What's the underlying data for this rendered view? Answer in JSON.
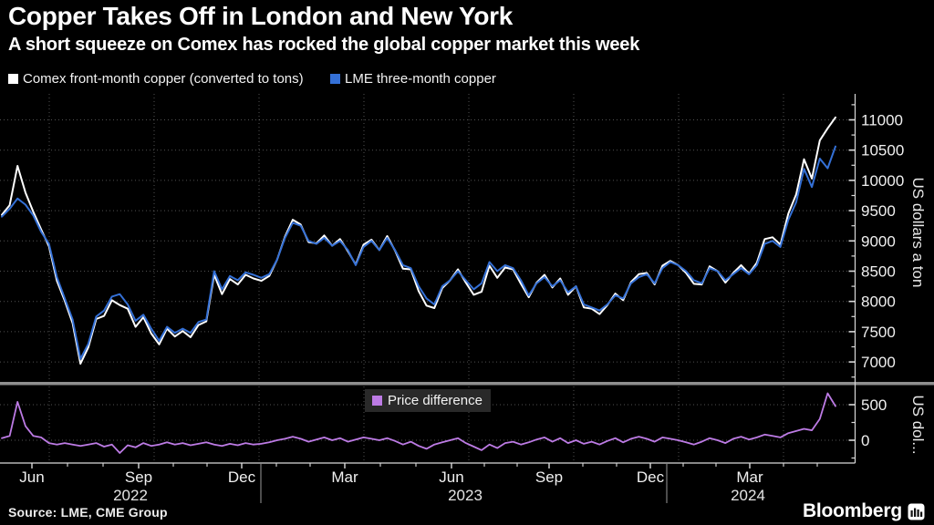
{
  "header": {
    "title": "Copper Takes Off in London and New York",
    "subtitle": "A short squeeze on Comex has rocked the global copper market this week"
  },
  "legend": {
    "series": [
      {
        "label": "Comex front-month copper (converted to tons)",
        "color": "#ffffff"
      },
      {
        "label": "LME three-month copper",
        "color": "#3470d6"
      }
    ]
  },
  "diff_legend": {
    "label": "Price difference",
    "color": "#bd7be5"
  },
  "footer": {
    "source": "Source: LME, CME Group",
    "brand": "Bloomberg"
  },
  "colors": {
    "background": "#000000",
    "comex_line": "#ffffff",
    "lme_line": "#3470d6",
    "diff_line": "#bd7be5",
    "grid": "rgba(255,255,255,0.32)",
    "axis": "#d9d9d9",
    "separator": "#8f8f8f"
  },
  "chart_data": [
    {
      "type": "line",
      "panel": "main",
      "ylabel": "US dollars a ton",
      "ylim": [
        6700,
        11450
      ],
      "yticks": [
        7000,
        7500,
        8000,
        8500,
        9000,
        9500,
        10000,
        10500,
        11000
      ],
      "grid": "dotted",
      "legend_position": "top-left-above-plot",
      "x_axis": {
        "month_ticks": [
          "Jun",
          "Sep",
          "Dec",
          "Mar",
          "Jun",
          "Sep",
          "Dec",
          "Mar"
        ],
        "year_labels": [
          "2022",
          "2023",
          "2024"
        ],
        "range": "May 2022 - May 2024"
      },
      "series": [
        {
          "name": "Comex front-month copper (converted to tons)",
          "color": "#ffffff",
          "values": [
            9430,
            9590,
            10240,
            9800,
            9480,
            9190,
            8910,
            8340,
            8010,
            7640,
            6970,
            7240,
            7710,
            7760,
            8020,
            7940,
            7880,
            7580,
            7740,
            7470,
            7290,
            7550,
            7420,
            7510,
            7410,
            7610,
            7670,
            8440,
            8120,
            8370,
            8280,
            8440,
            8380,
            8340,
            8420,
            8690,
            9070,
            9350,
            9270,
            8980,
            8960,
            9090,
            8920,
            9030,
            8830,
            8610,
            8940,
            9020,
            8850,
            9080,
            8840,
            8540,
            8530,
            8170,
            7930,
            7890,
            8220,
            8350,
            8530,
            8310,
            8110,
            8160,
            8590,
            8390,
            8560,
            8530,
            8290,
            8070,
            8310,
            8440,
            8230,
            8380,
            8110,
            8250,
            7900,
            7880,
            7790,
            7940,
            8130,
            8020,
            8320,
            8450,
            8470,
            8280,
            8590,
            8670,
            8600,
            8470,
            8290,
            8280,
            8580,
            8500,
            8310,
            8470,
            8600,
            8460,
            8640,
            9030,
            9060,
            8940,
            9450,
            9770,
            10350,
            10030,
            10660,
            10860,
            11040
          ]
        },
        {
          "name": "LME three-month copper",
          "color": "#3470d6",
          "values": [
            9400,
            9530,
            9700,
            9600,
            9420,
            9150,
            8950,
            8400,
            8050,
            7700,
            7050,
            7300,
            7750,
            7850,
            8080,
            8120,
            7950,
            7680,
            7780,
            7550,
            7350,
            7580,
            7480,
            7550,
            7480,
            7660,
            7700,
            8500,
            8200,
            8420,
            8350,
            8480,
            8440,
            8390,
            8450,
            8690,
            9050,
            9300,
            9250,
            9000,
            8950,
            9050,
            8920,
            9000,
            8850,
            8600,
            8900,
            9000,
            8850,
            9050,
            8850,
            8600,
            8550,
            8250,
            8050,
            7950,
            8250,
            8350,
            8500,
            8350,
            8200,
            8300,
            8650,
            8500,
            8600,
            8550,
            8350,
            8100,
            8300,
            8400,
            8250,
            8350,
            8150,
            8250,
            7950,
            7900,
            7850,
            7950,
            8100,
            8050,
            8300,
            8400,
            8450,
            8300,
            8550,
            8650,
            8600,
            8500,
            8350,
            8300,
            8550,
            8500,
            8350,
            8450,
            8550,
            8450,
            8600,
            8950,
            9000,
            8900,
            9350,
            9640,
            10190,
            9890,
            10360,
            10200,
            10560
          ]
        }
      ]
    },
    {
      "type": "line",
      "panel": "bottom",
      "ylabel": "US dol...",
      "ylim": [
        -330,
        740
      ],
      "yticks": [
        0,
        500
      ],
      "grid": "dotted",
      "series": [
        {
          "name": "Price difference",
          "color": "#bd7be5",
          "values": [
            30,
            60,
            540,
            200,
            60,
            40,
            -40,
            -60,
            -40,
            -60,
            -80,
            -60,
            -40,
            -90,
            -60,
            -180,
            -70,
            -100,
            -40,
            -80,
            -60,
            -30,
            -60,
            -40,
            -70,
            -50,
            -30,
            -60,
            -80,
            -50,
            -70,
            -40,
            -60,
            -50,
            -30,
            0,
            20,
            50,
            20,
            -20,
            10,
            40,
            0,
            30,
            -20,
            10,
            40,
            20,
            0,
            30,
            -10,
            -60,
            -20,
            -80,
            -120,
            -60,
            -30,
            0,
            30,
            -40,
            -90,
            -140,
            -60,
            -110,
            -40,
            -20,
            -60,
            -30,
            10,
            40,
            -20,
            30,
            -40,
            0,
            -50,
            -20,
            -60,
            -10,
            30,
            -30,
            20,
            50,
            20,
            -20,
            40,
            20,
            0,
            -30,
            -60,
            -20,
            30,
            0,
            -40,
            20,
            50,
            10,
            40,
            80,
            60,
            40,
            100,
            130,
            160,
            140,
            300,
            660,
            480
          ]
        }
      ]
    }
  ]
}
